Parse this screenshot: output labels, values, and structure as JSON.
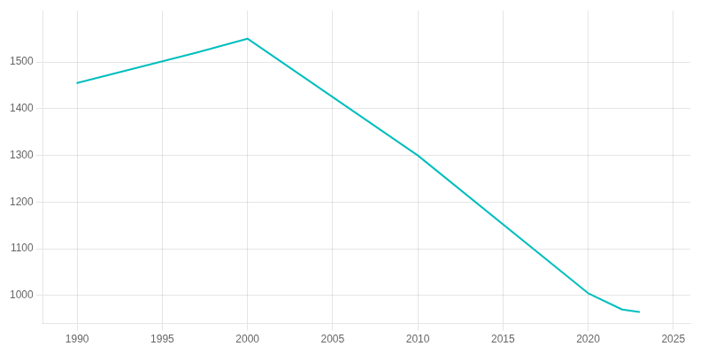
{
  "chart_data": {
    "type": "line",
    "x": [
      1990,
      1997,
      2000,
      2010,
      2020,
      2022,
      2023
    ],
    "values": [
      1455,
      1520,
      1550,
      1300,
      1005,
      970,
      965
    ],
    "color": "#00BEBE",
    "xlim": [
      1988,
      2026
    ],
    "ylim": [
      940,
      1610
    ],
    "xticks": [
      1990,
      1995,
      2000,
      2005,
      2010,
      2015,
      2020,
      2025
    ],
    "yticks": [
      1000,
      1100,
      1200,
      1300,
      1400,
      1500
    ],
    "grid": true
  }
}
